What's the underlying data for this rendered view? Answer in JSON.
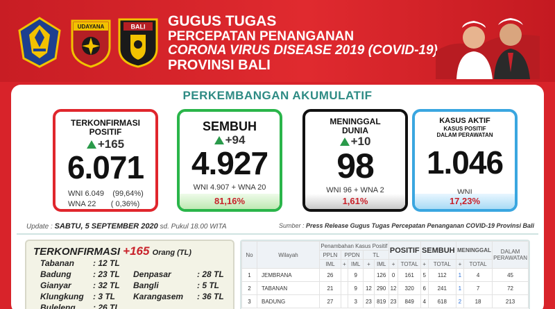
{
  "header": {
    "title_line1": "GUGUS TUGAS",
    "title_line2": "PERCEPATAN PENANGANAN",
    "title_line3": "CORONA VIRUS DISEASE 2019 (COVID-19)",
    "title_line4": "PROVINSI BALI",
    "logo_udayana_text": "UDAYANA",
    "logo_police_text": "BALI"
  },
  "section_title": "PERKEMBANGAN AKUMULATIF",
  "stats": [
    {
      "title": "TERKONFIRMASI POSITIF",
      "delta": "+165",
      "value": "6.071",
      "sub1": "WNI 6.049    (99,64%)",
      "sub2": "WNA 22       ( 0,36%)"
    },
    {
      "title": "SEMBUH",
      "delta": "+94",
      "value": "4.927",
      "sub1": "WNI 4.907 + WNA 20",
      "pct": "81,16%"
    },
    {
      "title": "MENINGGAL DUNIA",
      "delta": "+10",
      "value": "98",
      "sub1": "WNI 96 + WNA 2",
      "pct": "1,61%"
    },
    {
      "title": "KASUS AKTIF",
      "title2a": "KASUS POSITIF",
      "title2b": "DALAM PERAWATAN",
      "value": "1.046",
      "sub1": "WNI",
      "pct": "17,23%"
    }
  ],
  "update": {
    "label": "Update",
    "date": "SABTU, 5 SEPTEMBER 2020",
    "time": "sd. Pukul 18.00 WITA"
  },
  "source": {
    "label": "Sumber",
    "text": "Press Release Gugus Tugas Percepatan Penanganan COVID-19 Provinsi Bali"
  },
  "confirmed": {
    "title": "TERKONFIRMASI",
    "count": "+165",
    "unit": "Orang (TL)",
    "left": [
      {
        "name": "Tabanan",
        "value": ": 12 TL"
      },
      {
        "name": "Badung",
        "value": ": 23 TL"
      },
      {
        "name": "Gianyar",
        "value": ": 32 TL"
      },
      {
        "name": "Klungkung",
        "value": ": 3 TL"
      },
      {
        "name": "Buleleng",
        "value": ": 26 TL"
      }
    ],
    "right": [
      {
        "name": "Denpasar",
        "value": ": 28 TL"
      },
      {
        "name": "Bangli",
        "value": ": 5 TL"
      },
      {
        "name": "Karangasem",
        "value": ": 36 TL"
      }
    ]
  },
  "table": {
    "headers": {
      "no": "No",
      "wilayah": "Wilayah",
      "penambahan": "Penambahan Kasus Positif",
      "ppln": "PPLN",
      "ppdn": "PPDN",
      "tl": "TL",
      "positif": "POSITIF",
      "sembuh": "SEMBUH",
      "meninggal": "MENINGGAL",
      "dalam": "DALAM",
      "perawatan": "PERAWATAN",
      "imm": "IML",
      "total": "TOTAL",
      "plus": "+"
    },
    "rows": [
      {
        "no": "1",
        "name": "JEMBRANA",
        "ppln_t": "26",
        "ppdn_a": "",
        "ppdn_t": "9",
        "tl_a": "",
        "tl_t": "126",
        "pos_a": "0",
        "pos_t": "161",
        "sem_a": "5",
        "sem_t": "112",
        "men_a": "1",
        "men_t": "4",
        "rawat": "45"
      },
      {
        "no": "2",
        "name": "TABANAN",
        "ppln_t": "21",
        "ppdn_a": "",
        "ppdn_t": "9",
        "tl_a": "12",
        "tl_t": "290",
        "pos_a": "12",
        "pos_t": "320",
        "sem_a": "6",
        "sem_t": "241",
        "men_a": "1",
        "men_t": "7",
        "rawat": "72"
      },
      {
        "no": "3",
        "name": "BADUNG",
        "ppln_t": "27",
        "ppdn_a": "",
        "ppdn_t": "3",
        "tl_a": "23",
        "tl_t": "819",
        "pos_a": "23",
        "pos_t": "849",
        "sem_a": "4",
        "sem_t": "618",
        "men_a": "2",
        "men_t": "18",
        "rawat": "213"
      }
    ]
  }
}
